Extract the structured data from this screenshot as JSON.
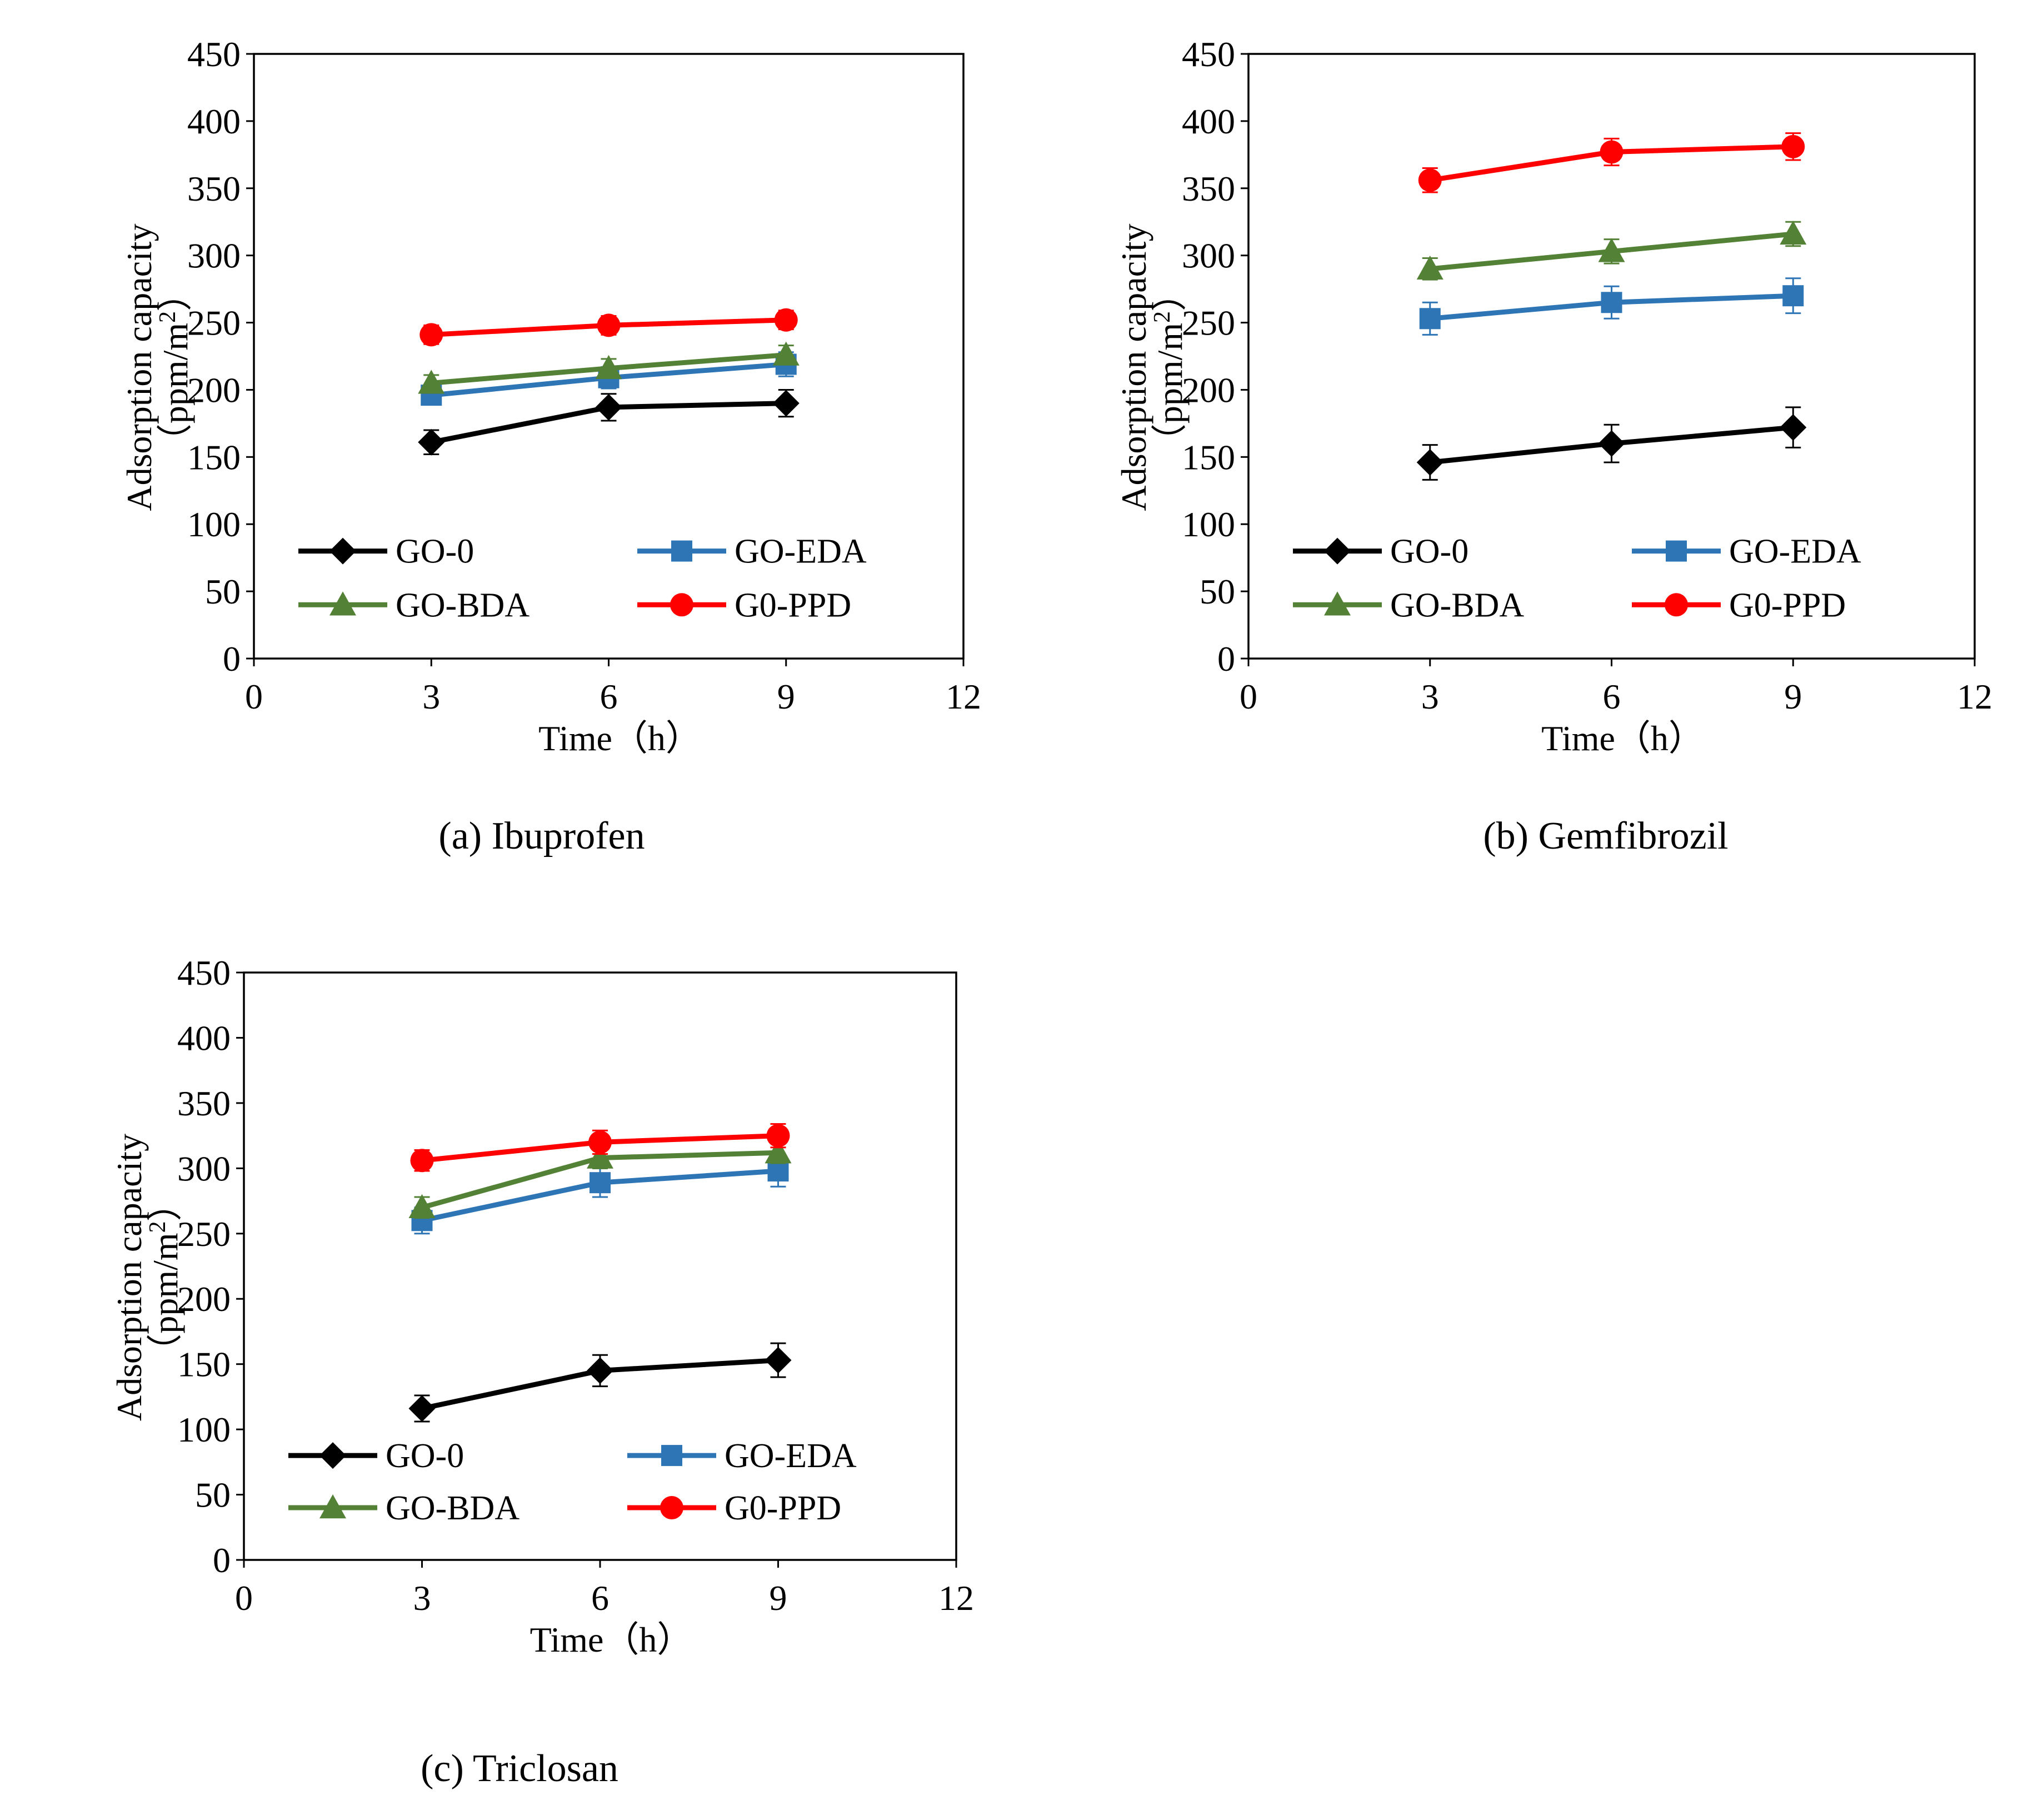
{
  "figure": {
    "series_colors": {
      "GO-0": "#000000",
      "GO-EDA": "#2E75B6",
      "GO-BDA": "#538135",
      "G0-PPD": "#FF0000"
    },
    "series_markers": {
      "GO-0": "diamond",
      "GO-EDA": "square",
      "GO-BDA": "triangle",
      "G0-PPD": "circle"
    }
  },
  "chart_data": [
    {
      "id": "a",
      "type": "line",
      "caption": "(a) Ibuprofen",
      "xlabel": "Time（h）",
      "ylabel_line1": "Adsorption capacity",
      "ylabel_line2_prefix": "（ppm/m",
      "ylabel_sup": "2",
      "ylabel_line2_suffix": "）",
      "xlim": [
        0,
        12
      ],
      "ylim": [
        0,
        450
      ],
      "xticks": [
        "0",
        "3",
        "6",
        "9",
        "12"
      ],
      "yticks": [
        "0",
        "50",
        "100",
        "150",
        "200",
        "250",
        "300",
        "350",
        "400",
        "450"
      ],
      "legend_position": "lower inside",
      "x": [
        3,
        6,
        9
      ],
      "series": [
        {
          "name": "GO-0",
          "values": [
            161,
            187,
            190
          ],
          "errors": [
            9,
            10,
            10
          ]
        },
        {
          "name": "GO-EDA",
          "values": [
            196,
            209,
            219
          ],
          "errors": [
            7,
            8,
            9
          ]
        },
        {
          "name": "GO-BDA",
          "values": [
            205,
            216,
            226
          ],
          "errors": [
            6,
            7,
            7
          ]
        },
        {
          "name": "G0-PPD",
          "values": [
            241,
            248,
            252
          ],
          "errors": [
            7,
            7,
            7
          ]
        }
      ]
    },
    {
      "id": "b",
      "type": "line",
      "caption": "(b) Gemfibrozil",
      "xlabel": "Time（h）",
      "ylabel_line1": "Adsorption capacity",
      "ylabel_line2_prefix": "（ppm/m",
      "ylabel_sup": "2",
      "ylabel_line2_suffix": "）",
      "xlim": [
        0,
        12
      ],
      "ylim": [
        0,
        450
      ],
      "xticks": [
        "0",
        "3",
        "6",
        "9",
        "12"
      ],
      "yticks": [
        "0",
        "50",
        "100",
        "150",
        "200",
        "250",
        "300",
        "350",
        "400",
        "450"
      ],
      "legend_position": "lower inside",
      "x": [
        3,
        6,
        9
      ],
      "series": [
        {
          "name": "GO-0",
          "values": [
            146,
            160,
            172
          ],
          "errors": [
            13,
            14,
            15
          ]
        },
        {
          "name": "GO-EDA",
          "values": [
            253,
            265,
            270
          ],
          "errors": [
            12,
            12,
            13
          ]
        },
        {
          "name": "GO-BDA",
          "values": [
            290,
            303,
            316
          ],
          "errors": [
            8,
            9,
            9
          ]
        },
        {
          "name": "G0-PPD",
          "values": [
            356,
            377,
            381
          ],
          "errors": [
            9,
            10,
            10
          ]
        }
      ]
    },
    {
      "id": "c",
      "type": "line",
      "caption": "(c) Triclosan",
      "xlabel": "Time（h）",
      "ylabel_line1": "Adsorption capacity",
      "ylabel_line2_prefix": "（ppm/m",
      "ylabel_sup": "2",
      "ylabel_line2_suffix": "）",
      "xlim": [
        0,
        12
      ],
      "ylim": [
        0,
        450
      ],
      "xticks": [
        "0",
        "3",
        "6",
        "9",
        "12"
      ],
      "yticks": [
        "0",
        "50",
        "100",
        "150",
        "200",
        "250",
        "300",
        "350",
        "400",
        "450"
      ],
      "legend_position": "lower inside",
      "x": [
        3,
        6,
        9
      ],
      "series": [
        {
          "name": "GO-0",
          "values": [
            116,
            145,
            153
          ],
          "errors": [
            10,
            12,
            13
          ]
        },
        {
          "name": "GO-EDA",
          "values": [
            260,
            289,
            298
          ],
          "errors": [
            10,
            11,
            12
          ]
        },
        {
          "name": "GO-BDA",
          "values": [
            270,
            308,
            312
          ],
          "errors": [
            8,
            8,
            8
          ]
        },
        {
          "name": "G0-PPD",
          "values": [
            306,
            320,
            325
          ],
          "errors": [
            8,
            9,
            9
          ]
        }
      ]
    }
  ]
}
